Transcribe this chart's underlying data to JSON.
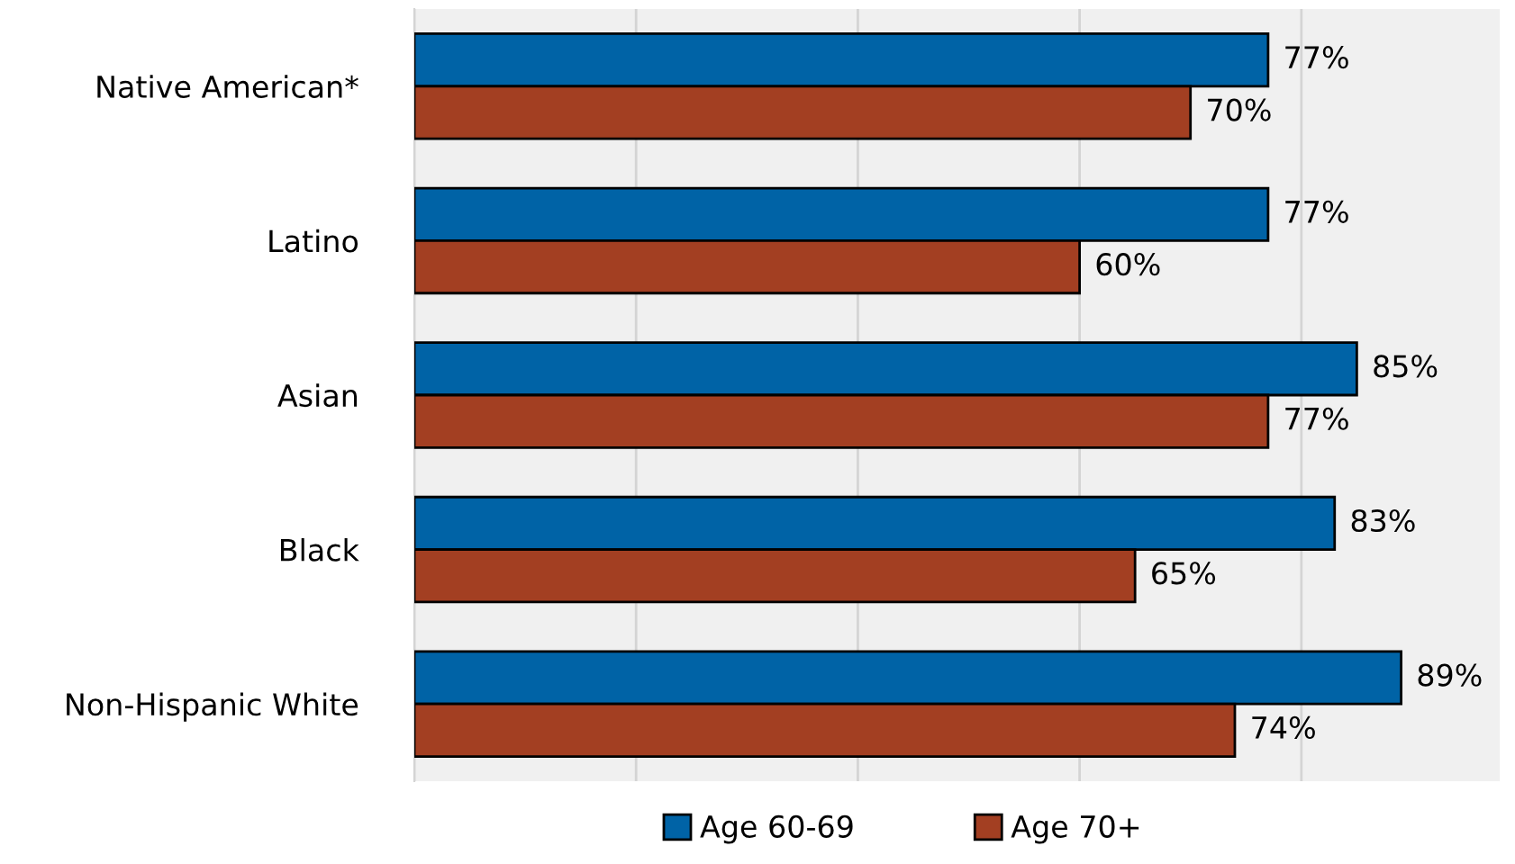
{
  "chart_data": {
    "type": "bar",
    "orientation": "horizontal",
    "categories": [
      "Native American*",
      "Latino",
      "Asian",
      "Black",
      "Non-Hispanic White"
    ],
    "series": [
      {
        "name": "Age 60-69",
        "color": "#0063a6",
        "values": [
          77,
          77,
          85,
          83,
          89
        ],
        "value_labels": [
          "77%",
          "77%",
          "85%",
          "83%",
          "89%"
        ]
      },
      {
        "name": "Age 70+",
        "color": "#a33f22",
        "values": [
          70,
          60,
          77,
          65,
          74
        ],
        "value_labels": [
          "70%",
          "60%",
          "77%",
          "65%",
          "74%"
        ]
      }
    ],
    "tick_labels": "y",
    "grid": "x",
    "legend": "bottom"
  }
}
